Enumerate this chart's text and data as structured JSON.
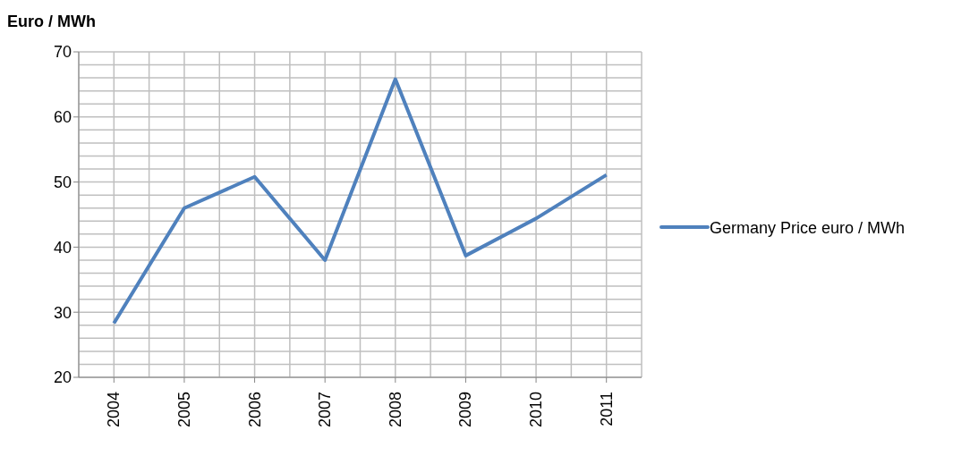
{
  "chart_data": {
    "type": "line",
    "ylabel": "Euro / MWh",
    "categories": [
      "2004",
      "2005",
      "2006",
      "2007",
      "2008",
      "2009",
      "2010",
      "2011"
    ],
    "series": [
      {
        "name": "Germany Price euro / MWh",
        "color": "#4f81bd",
        "values": [
          28.3,
          46,
          50.8,
          38,
          65.8,
          38.7,
          44.4,
          51.1
        ]
      }
    ],
    "ylim": [
      20,
      70
    ],
    "yticks": [
      20,
      30,
      40,
      50,
      60,
      70
    ],
    "grid": true,
    "legend": "right",
    "marker": "none",
    "line_style": "solid"
  }
}
